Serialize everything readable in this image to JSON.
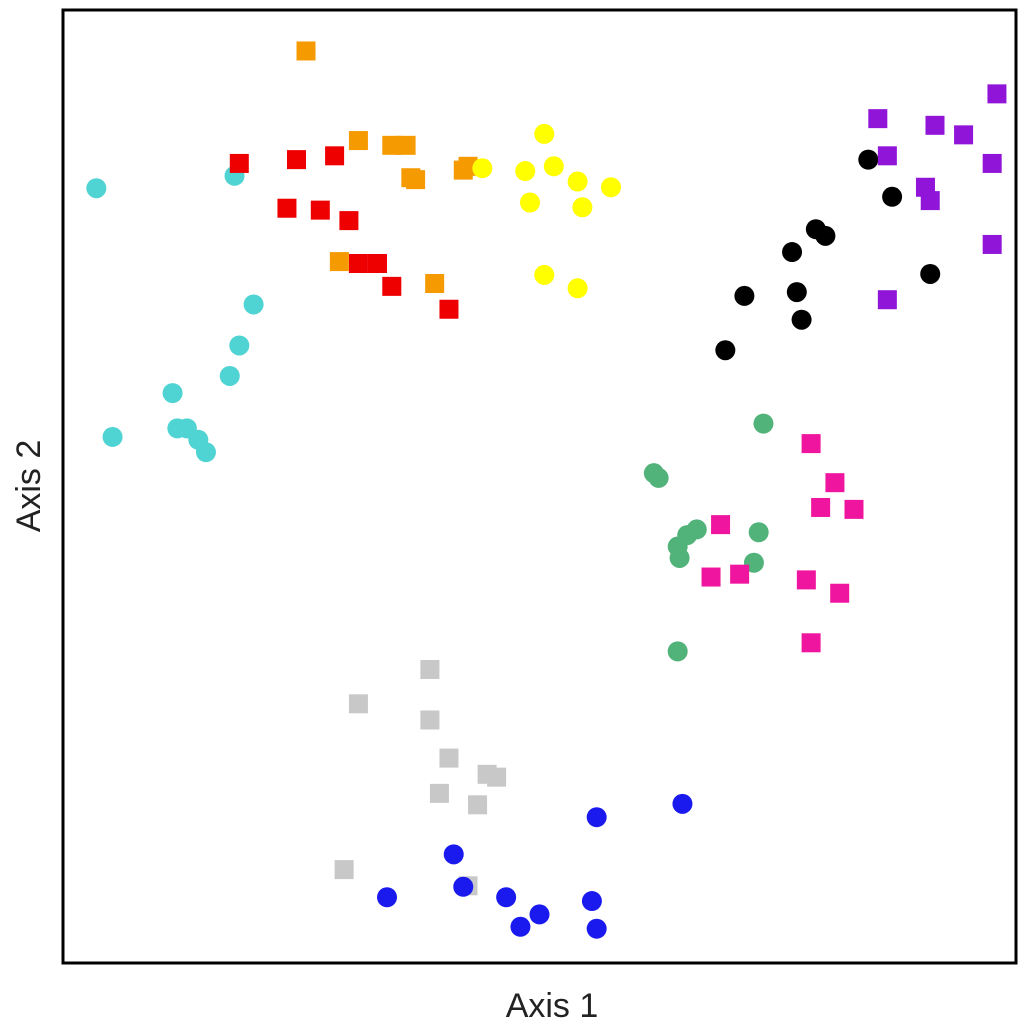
{
  "chart_data": {
    "type": "scatter",
    "xlabel": "Axis 1",
    "ylabel": "Axis 2",
    "xlim": [
      0,
      100
    ],
    "ylim": [
      0,
      100
    ],
    "grid": false,
    "legend": "none",
    "series": [
      {
        "marker": "circle",
        "color": "#4fd3d3",
        "x": [
          3.5,
          18,
          20,
          18.5,
          17.5,
          11.5,
          12,
          14.2,
          5.2,
          13,
          15
        ],
        "y": [
          81.3,
          82.6,
          69.1,
          64.8,
          61.6,
          59.8,
          56.1,
          54.9,
          55.2,
          56.1,
          53.6
        ]
      },
      {
        "marker": "square",
        "color": "#ee0000",
        "x": [
          18.5,
          24.5,
          28.5,
          23.5,
          27,
          30,
          31,
          33,
          34.5,
          40.5
        ],
        "y": [
          83.9,
          84.3,
          84.7,
          79.2,
          79.0,
          77.9,
          73.4,
          73.4,
          71.0,
          68.6
        ]
      },
      {
        "marker": "square",
        "color": "#f59a00",
        "x": [
          25.5,
          31,
          34.5,
          36,
          36.5,
          42,
          37,
          42.5,
          29,
          39
        ],
        "y": [
          95.7,
          86.3,
          85.8,
          85.8,
          82.4,
          83.2,
          82.2,
          83.6,
          73.6,
          71.3
        ]
      },
      {
        "marker": "circle",
        "color": "#ffff00",
        "x": [
          50.5,
          44,
          48.5,
          51.5,
          54,
          57.5,
          49,
          54.5,
          50.5,
          54
        ],
        "y": [
          87.0,
          83.4,
          83.1,
          83.6,
          82.0,
          81.4,
          79.8,
          79.3,
          72.2,
          70.8
        ]
      },
      {
        "marker": "circle",
        "color": "#000000",
        "x": [
          84.5,
          87,
          79,
          76.5,
          80,
          71.5,
          77,
          77.5,
          69.5,
          91
        ],
        "y": [
          84.3,
          80.4,
          77.0,
          74.6,
          76.3,
          70.0,
          70.4,
          67.5,
          64.3,
          72.3
        ]
      },
      {
        "marker": "square",
        "color": "#9015d8",
        "x": [
          85.5,
          86.5,
          91.5,
          94.5,
          98,
          97.5,
          90.5,
          91,
          97.5,
          86.5
        ],
        "y": [
          88.6,
          84.7,
          87.9,
          86.9,
          91.2,
          83.9,
          81.4,
          80.0,
          75.4,
          69.6
        ]
      },
      {
        "marker": "circle",
        "color": "#52b37a",
        "x": [
          73.5,
          62,
          62.5,
          65.5,
          66.5,
          73,
          64.5,
          64.7,
          72.5,
          64.5
        ],
        "y": [
          56.6,
          51.4,
          50.9,
          44.9,
          45.5,
          45.2,
          43.7,
          42.5,
          42.0,
          32.7
        ]
      },
      {
        "marker": "square",
        "color": "#f0159e",
        "x": [
          78.5,
          81,
          79.5,
          83,
          69,
          68,
          71,
          78,
          81.5,
          78.5
        ],
        "y": [
          54.5,
          50.4,
          47.8,
          47.6,
          46.0,
          40.5,
          40.8,
          40.2,
          38.8,
          33.6
        ]
      },
      {
        "marker": "square",
        "color": "#c8c8c8",
        "x": [
          38.5,
          31,
          38.5,
          40.5,
          44.5,
          45.5,
          39.5,
          43.5,
          29.5,
          42.5
        ],
        "y": [
          30.8,
          27.2,
          25.5,
          21.5,
          19.8,
          19.5,
          17.8,
          16.6,
          9.8,
          8.1
        ]
      },
      {
        "marker": "circle",
        "color": "#1a1aee",
        "x": [
          65,
          56,
          41,
          34,
          42,
          46.5,
          55.5,
          50,
          48,
          56
        ],
        "y": [
          16.7,
          15.3,
          11.4,
          6.9,
          8.0,
          6.9,
          6.5,
          5.1,
          3.8,
          3.6
        ]
      }
    ]
  }
}
